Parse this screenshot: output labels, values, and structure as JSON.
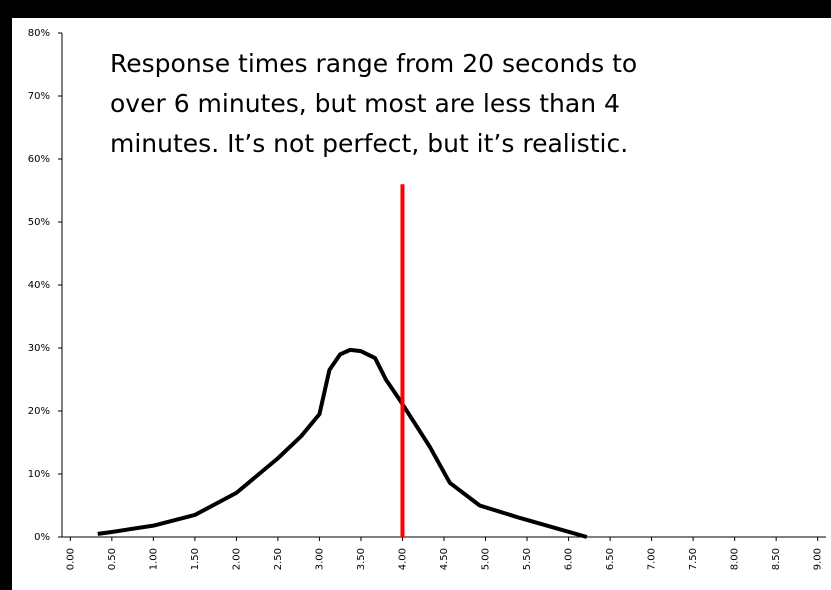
{
  "chart_data": {
    "type": "line",
    "annotation": [
      "Response times range from 20 seconds to",
      "over 6 minutes, but most are less than 4",
      "minutes.  It’s not perfect, but it’s realistic."
    ],
    "series": [
      {
        "color": "#000000",
        "x": [
          0.33,
          0.5,
          1.0,
          1.5,
          2.0,
          2.5,
          2.78,
          3.0,
          3.12,
          3.25,
          3.37,
          3.5,
          3.67,
          3.8,
          3.97,
          4.15,
          4.33,
          4.57,
          4.93,
          5.42,
          5.9,
          6.22
        ],
        "values": [
          0.5,
          0.8,
          1.8,
          3.5,
          7,
          12.5,
          16,
          19.5,
          26.5,
          29,
          29.7,
          29.5,
          28.4,
          25,
          21.7,
          18,
          14.3,
          8.6,
          5,
          3,
          1.2,
          0
        ]
      },
      {
        "color": "#ff0000",
        "x": [
          4.0,
          4.0
        ],
        "values": [
          0,
          56
        ]
      }
    ],
    "xlim": [
      -0.1,
      9.1
    ],
    "xticks": [
      {
        "value": 0,
        "label": "0.00"
      },
      {
        "value": 0.5,
        "label": "0.50"
      },
      {
        "value": 1,
        "label": "1.00"
      },
      {
        "value": 1.5,
        "label": "1.50"
      },
      {
        "value": 2,
        "label": "2.00"
      },
      {
        "value": 2.5,
        "label": "2.50"
      },
      {
        "value": 3,
        "label": "3.00"
      },
      {
        "value": 3.5,
        "label": "3.50"
      },
      {
        "value": 4,
        "label": "4.00"
      },
      {
        "value": 4.5,
        "label": "4.50"
      },
      {
        "value": 5,
        "label": "5.00"
      },
      {
        "value": 5.5,
        "label": "5.50"
      },
      {
        "value": 6,
        "label": "6.00"
      },
      {
        "value": 6.5,
        "label": "6.50"
      },
      {
        "value": 7,
        "label": "7.00"
      },
      {
        "value": 7.5,
        "label": "7.50"
      },
      {
        "value": 8,
        "label": "8.00"
      },
      {
        "value": 8.5,
        "label": "8.50"
      },
      {
        "value": 9,
        "label": "9.00"
      }
    ],
    "ylim": [
      0,
      80
    ],
    "yticks": [
      {
        "value": 0,
        "label": "0%"
      },
      {
        "value": 10,
        "label": "10%"
      },
      {
        "value": 20,
        "label": "20%"
      },
      {
        "value": 30,
        "label": "30%"
      },
      {
        "value": 40,
        "label": "40%"
      },
      {
        "value": 50,
        "label": "50%"
      },
      {
        "value": 60,
        "label": "60%"
      },
      {
        "value": 70,
        "label": "70%"
      },
      {
        "value": 80,
        "label": "80%"
      }
    ]
  }
}
